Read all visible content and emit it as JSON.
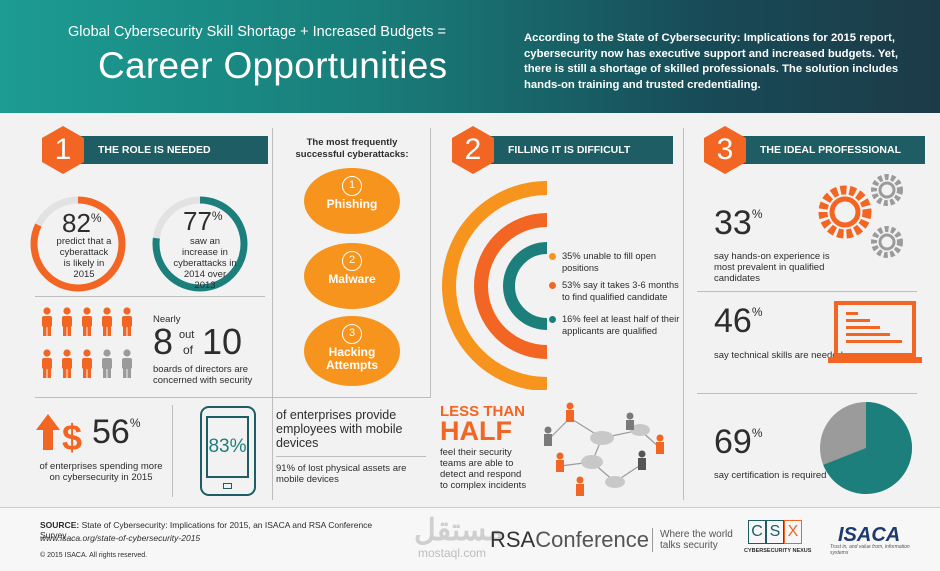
{
  "header": {
    "tagline": "Global Cybersecurity Skill Shortage + Increased Budgets =",
    "title": "Career Opportunities",
    "intro": "According to the State of Cybersecurity: Implications for 2015 report, cybersecurity now has executive support and increased budgets. Yet, there is still a shortage of skilled professionals. The solution includes hands-on training and trusted credentialing."
  },
  "section1": {
    "number": "1",
    "title": "THE ROLE IS NEEDED",
    "stat1": {
      "value": "82",
      "unit": "%",
      "text": "predict that a cyberattack is likely in 2015",
      "level": 0.82
    },
    "stat2": {
      "value": "77",
      "unit": "%",
      "text": "saw an increase in cyberattacks in 2014 over 2013",
      "level": 0.77
    },
    "boards": {
      "nearly": "Nearly",
      "num": "8",
      "out": "out",
      "of": "of",
      "den": "10",
      "text": "boards of directors are concerned with security",
      "orange_count": 8,
      "total": 10
    },
    "budget": {
      "value": "56",
      "unit": "%",
      "text": "of enterprises spending more on cybersecurity in 2015"
    },
    "mobile": {
      "value": "83%",
      "text1": "of enterprises provide employees with mobile devices",
      "text2": "91% of lost physical assets are mobile devices"
    }
  },
  "attacks": {
    "heading": "The most frequently successful cyberattacks:",
    "items": [
      {
        "num": "1",
        "label": "Phishing"
      },
      {
        "num": "2",
        "label": "Malware"
      },
      {
        "num": "3",
        "label": "Hacking Attempts"
      }
    ]
  },
  "section2": {
    "number": "2",
    "title": "FILLING IT IS DIFFICULT",
    "legend": [
      {
        "text": "35% unable to fill open positions",
        "color": "#f7941d",
        "value": 35
      },
      {
        "text": "53% say it takes 3-6 months to find qualified candidate",
        "color": "#f26522",
        "value": 53
      },
      {
        "text": "16% feel at least half of their applicants are qualified",
        "color": "#1d7f7b",
        "value": 16
      }
    ],
    "less_than": "LESS THAN",
    "half": "HALF",
    "half_text": "feel their security teams are able to detect and respond to complex incidents"
  },
  "section3": {
    "number": "3",
    "title": "THE IDEAL PROFESSIONAL",
    "stat1": {
      "value": "33",
      "unit": "%",
      "text": "say hands-on experience is most prevalent in qualified candidates"
    },
    "stat2": {
      "value": "46",
      "unit": "%",
      "text": "say technical skills are needed"
    },
    "stat3": {
      "value": "69",
      "unit": "%",
      "text": "say certification is required",
      "level": 0.69
    }
  },
  "footer": {
    "source_label": "SOURCE:",
    "source_text": "State of Cybersecurity: Implications for 2015, an ISACA and RSA Conference Survey",
    "source_url": "www.isaca.org/state-of-cybersecurity-2015",
    "copyright": "© 2015 ISACA. All rights reserved.",
    "rsa_a": "RSA",
    "rsa_b": "Conference",
    "rsa_tag": "Where the world talks security",
    "csx_letters": [
      "C",
      "S",
      "X"
    ],
    "csx_sub": "CYBERSECURITY NEXUS",
    "isaca": "ISACA",
    "isaca_sub": "Trust in, and value from, information systems",
    "watermark_ar": "مستقل",
    "watermark_en": "mostaql.com"
  },
  "colors": {
    "orange": "#f26522",
    "amber": "#f7941d",
    "teal": "#1d7f7b",
    "dark_teal": "#1d5d63",
    "gray": "#9b9b9b"
  }
}
